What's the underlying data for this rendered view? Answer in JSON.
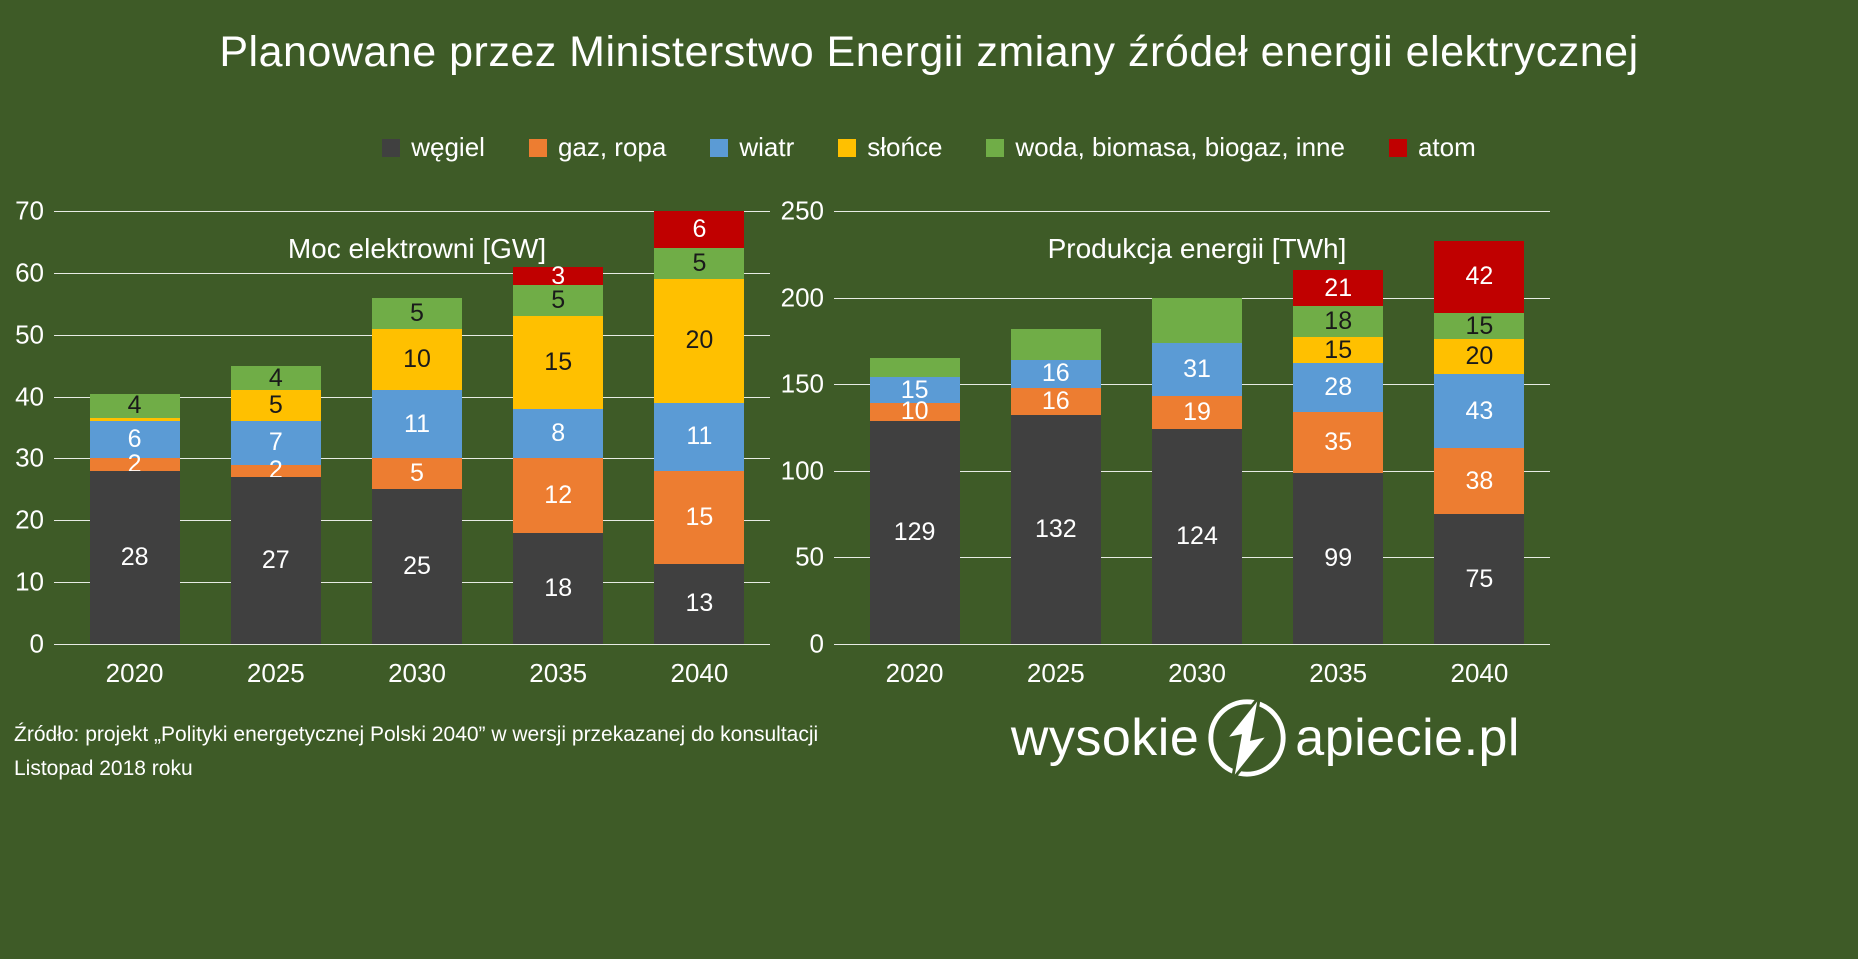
{
  "title": "Planowane przez Ministerstwo Energii zmiany źródeł energii elektrycznej",
  "colors": {
    "background": "#3e5b27",
    "text": "#ffffff",
    "wegiel": "#404040",
    "gaz_ropa": "#ed7d31",
    "wiatr": "#5b9bd5",
    "slonce": "#ffc000",
    "woda_biomasa": "#70ad47",
    "atom": "#c00000"
  },
  "legend": [
    {
      "label": "węgiel",
      "color": "#404040"
    },
    {
      "label": "gaz, ropa",
      "color": "#ed7d31"
    },
    {
      "label": "wiatr",
      "color": "#5b9bd5"
    },
    {
      "label": "słońce",
      "color": "#ffc000"
    },
    {
      "label": "woda, biomasa, biogaz, inne",
      "color": "#70ad47"
    },
    {
      "label": "atom",
      "color": "#c00000"
    }
  ],
  "chart_data": [
    {
      "type": "bar",
      "stacked": true,
      "title": "Moc elektrowni [GW]",
      "unit": "GW",
      "categories": [
        "2020",
        "2025",
        "2030",
        "2035",
        "2040"
      ],
      "ylim": [
        0,
        70
      ],
      "yticks": [
        0,
        10,
        20,
        30,
        40,
        50,
        60,
        70
      ],
      "grid": true,
      "series": [
        {
          "name": "węgiel",
          "color": "#404040",
          "label_color": "#ffffff",
          "values": [
            28,
            27,
            25,
            18,
            13
          ],
          "labels": [
            "28",
            "27",
            "25",
            "18",
            "13"
          ]
        },
        {
          "name": "gaz, ropa",
          "color": "#ed7d31",
          "label_color": "#ffffff",
          "values": [
            2,
            2,
            5,
            12,
            15
          ],
          "labels": [
            "2",
            "2",
            "5",
            "12",
            "15"
          ]
        },
        {
          "name": "wiatr",
          "color": "#5b9bd5",
          "label_color": "#ffffff",
          "values": [
            6,
            7,
            11,
            8,
            11
          ],
          "labels": [
            "6",
            "7",
            "11",
            "8",
            "11"
          ]
        },
        {
          "name": "słońce",
          "color": "#ffc000",
          "label_color": "#1a1a1a",
          "values": [
            0.5,
            5,
            10,
            15,
            20
          ],
          "labels": [
            "",
            "5",
            "10",
            "15",
            "20"
          ]
        },
        {
          "name": "woda, biomasa, biogaz, inne",
          "color": "#70ad47",
          "label_color": "#1a1a1a",
          "values": [
            4,
            4,
            5,
            5,
            5
          ],
          "labels": [
            "4",
            "4",
            "5",
            "5",
            "5"
          ]
        },
        {
          "name": "atom",
          "color": "#c00000",
          "label_color": "#ffffff",
          "values": [
            0,
            0,
            0,
            3,
            6
          ],
          "labels": [
            "",
            "",
            "",
            "3",
            "6"
          ]
        }
      ]
    },
    {
      "type": "bar",
      "stacked": true,
      "title": "Produkcja energii [TWh]",
      "unit": "TWh",
      "categories": [
        "2020",
        "2025",
        "2030",
        "2035",
        "2040"
      ],
      "ylim": [
        0,
        250
      ],
      "yticks": [
        0,
        50,
        100,
        150,
        200,
        250
      ],
      "grid": true,
      "series": [
        {
          "name": "węgiel",
          "color": "#404040",
          "label_color": "#ffffff",
          "values": [
            129,
            132,
            124,
            99,
            75
          ],
          "labels": [
            "129",
            "132",
            "124",
            "99",
            "75"
          ]
        },
        {
          "name": "gaz, ropa",
          "color": "#ed7d31",
          "label_color": "#ffffff",
          "values": [
            10,
            16,
            19,
            35,
            38
          ],
          "labels": [
            "10",
            "16",
            "19",
            "35",
            "38"
          ]
        },
        {
          "name": "wiatr",
          "color": "#5b9bd5",
          "label_color": "#ffffff",
          "values": [
            15,
            16,
            31,
            28,
            43
          ],
          "labels": [
            "15",
            "16",
            "31",
            "28",
            "43"
          ]
        },
        {
          "name": "słońce",
          "color": "#ffc000",
          "label_color": "#1a1a1a",
          "values": [
            0,
            0,
            0,
            15,
            20
          ],
          "labels": [
            "",
            "",
            "",
            "15",
            "20"
          ]
        },
        {
          "name": "woda, biomasa, biogaz, inne",
          "color": "#70ad47",
          "label_color": "#1a1a1a",
          "values": [
            11,
            18,
            26,
            18,
            15
          ],
          "labels": [
            "",
            "",
            "",
            "18",
            "15"
          ]
        },
        {
          "name": "atom",
          "color": "#c00000",
          "label_color": "#ffffff",
          "values": [
            0,
            0,
            0,
            21,
            42
          ],
          "labels": [
            "",
            "",
            "",
            "21",
            "42"
          ]
        }
      ]
    }
  ],
  "source": {
    "line1": "Źródło: projekt „Polityki energetycznej Polski 2040” w wersji przekazanej do konsultacji",
    "line2": "Listopad 2018 roku"
  },
  "logo": {
    "prefix": "wysokie",
    "suffix": "apiecie.pl"
  }
}
